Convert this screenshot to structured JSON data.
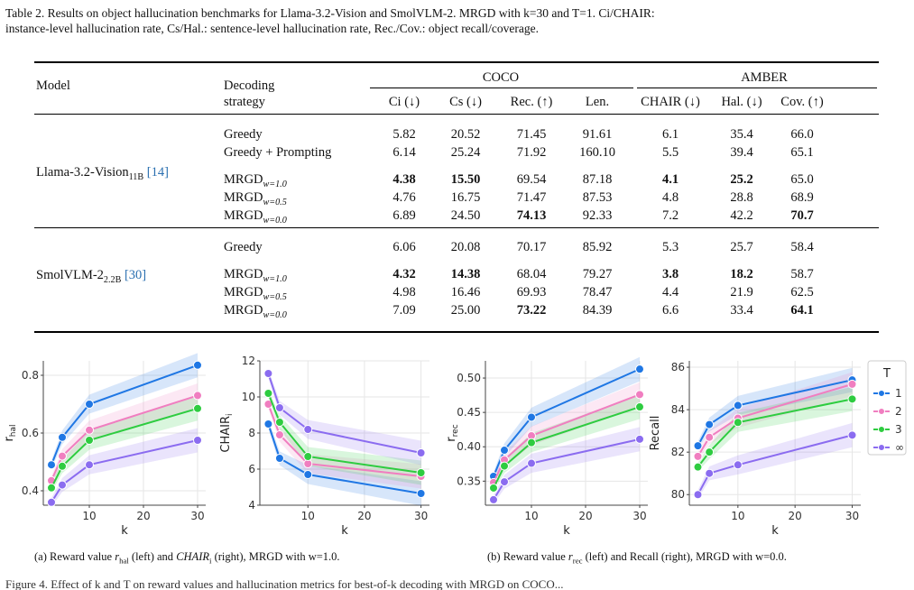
{
  "caption": {
    "prefix": "Table 2.",
    "text_line1": "Results on object hallucination benchmarks for Llama-3.2-Vision and SmolVLM-2. MRGD with k=30 and T=1. Ci/CHAIR:",
    "text_line2": "instance-level hallucination rate, Cs/Hal.: sentence-level hallucination rate, Rec./Cov.: object recall/coverage."
  },
  "table": {
    "col_model": "Model",
    "col_strategy_1": "Decoding",
    "col_strategy_2": "strategy",
    "group_coco": "COCO",
    "group_amber": "AMBER",
    "metric_headers": [
      "Ci (↓)",
      "Cs (↓)",
      "Rec. (↑)",
      "Len.",
      "CHAIR (↓)",
      "Hal. (↓)",
      "Cov. (↑)"
    ],
    "blocks": [
      {
        "model": "Llama-3.2-Vision",
        "model_sub": "11B",
        "model_ref": "[14]",
        "rows": [
          {
            "strategy": "Greedy",
            "sub": "",
            "values": [
              "5.82",
              "20.52",
              "71.45",
              "91.61",
              "6.1",
              "35.4",
              "66.0"
            ],
            "bold": [
              false,
              false,
              false,
              false,
              false,
              false,
              false
            ]
          },
          {
            "strategy": "Greedy + Prompting",
            "sub": "",
            "values": [
              "6.14",
              "25.24",
              "71.92",
              "160.10",
              "5.5",
              "39.4",
              "65.1"
            ],
            "bold": [
              false,
              false,
              false,
              false,
              false,
              false,
              false
            ]
          },
          {
            "strategy": "MRGD",
            "sub": "w=1.0",
            "values": [
              "4.38",
              "15.50",
              "69.54",
              "87.18",
              "4.1",
              "25.2",
              "65.0"
            ],
            "bold": [
              true,
              true,
              false,
              false,
              true,
              true,
              false
            ]
          },
          {
            "strategy": "MRGD",
            "sub": "w=0.5",
            "values": [
              "4.76",
              "16.75",
              "71.47",
              "87.53",
              "4.8",
              "28.8",
              "68.9"
            ],
            "bold": [
              false,
              false,
              false,
              false,
              false,
              false,
              false
            ]
          },
          {
            "strategy": "MRGD",
            "sub": "w=0.0",
            "values": [
              "6.89",
              "24.50",
              "74.13",
              "92.33",
              "7.2",
              "42.2",
              "70.7"
            ],
            "bold": [
              false,
              false,
              true,
              false,
              false,
              false,
              true
            ]
          }
        ]
      },
      {
        "model": "SmolVLM-2",
        "model_sub": "2.2B",
        "model_ref": "[30]",
        "rows": [
          {
            "strategy": "Greedy",
            "sub": "",
            "values": [
              "6.06",
              "20.08",
              "70.17",
              "85.92",
              "5.3",
              "25.7",
              "58.4"
            ],
            "bold": [
              false,
              false,
              false,
              false,
              false,
              false,
              false
            ]
          },
          {
            "strategy": "MRGD",
            "sub": "w=1.0",
            "values": [
              "4.32",
              "14.38",
              "68.04",
              "79.27",
              "3.8",
              "18.2",
              "58.7"
            ],
            "bold": [
              true,
              true,
              false,
              false,
              true,
              true,
              false
            ]
          },
          {
            "strategy": "MRGD",
            "sub": "w=0.5",
            "values": [
              "4.98",
              "16.46",
              "69.93",
              "78.47",
              "4.4",
              "21.9",
              "62.5"
            ],
            "bold": [
              false,
              false,
              false,
              false,
              false,
              false,
              false
            ]
          },
          {
            "strategy": "MRGD",
            "sub": "w=0.0",
            "values": [
              "7.09",
              "25.00",
              "73.22",
              "84.39",
              "6.6",
              "33.4",
              "64.1"
            ],
            "bold": [
              false,
              false,
              true,
              false,
              false,
              false,
              true
            ]
          }
        ]
      }
    ]
  },
  "colors": {
    "T1": "#1f77e4",
    "T2": "#f07ec0",
    "T3": "#2ecc40",
    "Tinf": "#8b6cf0"
  },
  "chart_data": [
    {
      "type": "line",
      "x": [
        3,
        5,
        10,
        30
      ],
      "xlabel": "k",
      "ylabel": "r_hal",
      "ylim": [
        0.35,
        0.85
      ],
      "yticks": [
        0.4,
        0.6,
        0.8
      ],
      "xticks": [
        10,
        20,
        30
      ],
      "series": [
        {
          "name": "1",
          "values": [
            0.49,
            0.585,
            0.7,
            0.835
          ]
        },
        {
          "name": "2",
          "values": [
            0.435,
            0.52,
            0.61,
            0.73
          ]
        },
        {
          "name": "3",
          "values": [
            0.41,
            0.485,
            0.575,
            0.685
          ]
        },
        {
          "name": "∞",
          "values": [
            0.36,
            0.42,
            0.49,
            0.575
          ]
        }
      ]
    },
    {
      "type": "line",
      "x": [
        3,
        5,
        10,
        30
      ],
      "xlabel": "k",
      "ylabel": "CHAIR_i",
      "ylim": [
        4,
        12
      ],
      "yticks": [
        4,
        6,
        8,
        10,
        12
      ],
      "xticks": [
        10,
        20,
        30
      ],
      "series": [
        {
          "name": "1",
          "values": [
            8.5,
            6.6,
            5.7,
            4.65
          ]
        },
        {
          "name": "2",
          "values": [
            9.6,
            7.9,
            6.3,
            5.6
          ]
        },
        {
          "name": "3",
          "values": [
            10.2,
            8.6,
            6.7,
            5.8
          ]
        },
        {
          "name": "∞",
          "values": [
            11.3,
            9.4,
            8.2,
            6.9
          ]
        }
      ]
    },
    {
      "type": "line",
      "x": [
        3,
        5,
        10,
        30
      ],
      "xlabel": "k",
      "ylabel": "r_rec",
      "ylim": [
        0.315,
        0.525
      ],
      "yticks": [
        0.35,
        0.4,
        0.45,
        0.5
      ],
      "xticks": [
        10,
        20,
        30
      ],
      "series": [
        {
          "name": "1",
          "values": [
            0.357,
            0.395,
            0.443,
            0.513
          ]
        },
        {
          "name": "2",
          "values": [
            0.348,
            0.381,
            0.416,
            0.476
          ]
        },
        {
          "name": "3",
          "values": [
            0.34,
            0.372,
            0.406,
            0.458
          ]
        },
        {
          "name": "∞",
          "values": [
            0.323,
            0.349,
            0.376,
            0.411
          ]
        }
      ]
    },
    {
      "type": "line",
      "x": [
        3,
        5,
        10,
        30
      ],
      "xlabel": "k",
      "ylabel": "Recall",
      "ylim": [
        79.5,
        86.3
      ],
      "yticks": [
        80,
        82,
        84,
        86
      ],
      "xticks": [
        10,
        20,
        30
      ],
      "series": [
        {
          "name": "1",
          "values": [
            82.3,
            83.3,
            84.2,
            85.4
          ]
        },
        {
          "name": "2",
          "values": [
            81.8,
            82.7,
            83.6,
            85.2
          ]
        },
        {
          "name": "3",
          "values": [
            81.3,
            82.0,
            83.4,
            84.5
          ]
        },
        {
          "name": "∞",
          "values": [
            80.0,
            81.0,
            81.4,
            82.8
          ]
        }
      ]
    }
  ],
  "legend": {
    "title": "T",
    "entries": [
      "1",
      "2",
      "3",
      "∞"
    ]
  },
  "subcaptions": {
    "a": "(a) Reward value r_hal (left) and CHAIR_i (right), MRGD with w=1.0.",
    "b": "(b) Reward value r_rec (left) and Recall (right), MRGD with w=0.0."
  },
  "tail_text": "Figure 4. Effect of k and T on reward values and hallucination metrics for best-of-k decoding with MRGD on COCO..."
}
